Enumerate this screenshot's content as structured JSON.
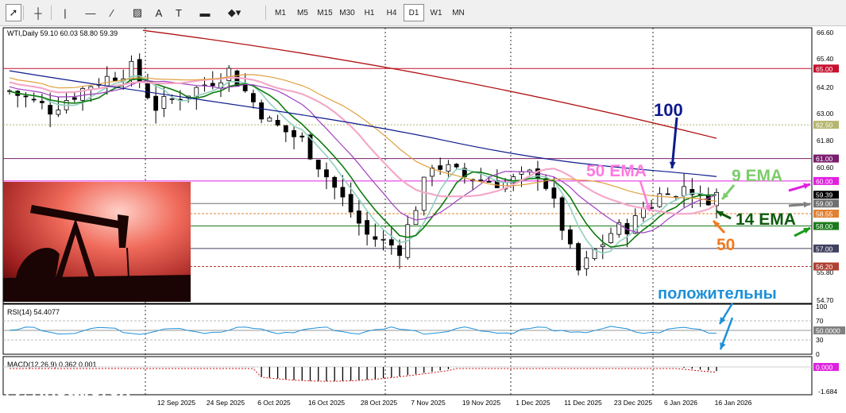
{
  "toolbar": {
    "tools": [
      {
        "name": "cursor-arrow-icon",
        "glyph": "➚"
      },
      {
        "name": "crosshair-icon",
        "glyph": "┼"
      },
      {
        "name": "vertical-line-icon",
        "glyph": "|"
      },
      {
        "name": "horizontal-line-icon",
        "glyph": "—"
      },
      {
        "name": "trendline-icon",
        "glyph": "∕"
      },
      {
        "name": "channel-icon",
        "glyph": "▨"
      },
      {
        "name": "text-tool-icon",
        "glyph": "A"
      },
      {
        "name": "label-tool-icon",
        "glyph": "T"
      },
      {
        "name": "rectangle-icon",
        "glyph": "▬"
      },
      {
        "name": "shapes-menu-icon",
        "glyph": "◆▾"
      }
    ],
    "timeframes": [
      "M1",
      "M5",
      "M15",
      "M30",
      "H1",
      "H4",
      "D1",
      "W1",
      "MN"
    ],
    "selected_timeframe": "D1"
  },
  "chart_header": "WTI,Daily  59.10 60.03 58.80 59.39",
  "price_axis": {
    "ticks": [
      "66.60",
      "65.40",
      "64.20",
      "63.00",
      "61.80",
      "60.60",
      "59.39",
      "59.00",
      "58.55",
      "57.00",
      "55.80",
      "54.70"
    ],
    "tags": [
      {
        "value": "65.00",
        "color": "#c8102e"
      },
      {
        "value": "62.50",
        "color": "#b5b56e"
      },
      {
        "value": "61.00",
        "color": "#7a1e6e"
      },
      {
        "value": "60.00",
        "color": "#e020e0"
      },
      {
        "value": "59.39",
        "color": "#000000"
      },
      {
        "value": "59.00",
        "color": "#707070"
      },
      {
        "value": "58.55",
        "color": "#e08030"
      },
      {
        "value": "58.00",
        "color": "#1a7a1a"
      },
      {
        "value": "57.00",
        "color": "#404060"
      },
      {
        "value": "56.20",
        "color": "#b04030"
      }
    ]
  },
  "rsi": {
    "header": "RSI(14) 54.4077",
    "ticks": [
      "100",
      "70",
      "50",
      "30",
      "0"
    ],
    "tag": "50.0000"
  },
  "macd": {
    "header": "MACD(12,26,9) 0.362 0.001",
    "tag": "0.000",
    "low": "-1.684"
  },
  "date_axis": [
    "12 Sep 2025",
    "24 Sep 2025",
    "6 Oct 2025",
    "16 Oct 2025",
    "28 Oct 2025",
    "7 Nov 2025",
    "19 Nov 2025",
    "1 Dec 2025",
    "11 Dec 2025",
    "23 Dec 2025",
    "6 Jan 2026",
    "16 Jan 2026"
  ],
  "annotations": {
    "ma100": "100",
    "ema50": "50 EMA",
    "ema9": "9 EMA",
    "ema14": "14 EMA",
    "fifty": "50",
    "positive": "положительны"
  },
  "logo": {
    "brand": "instaforex",
    "tagline": "Instant Forex Trading"
  },
  "colors": {
    "ma100": "#0d1a8c",
    "ema50": "#ff7ae0",
    "ema9": "#7ccc6a",
    "ema14": "#0d5a0d",
    "fifty": "#f07a20",
    "positive": "#1e90d8"
  }
}
